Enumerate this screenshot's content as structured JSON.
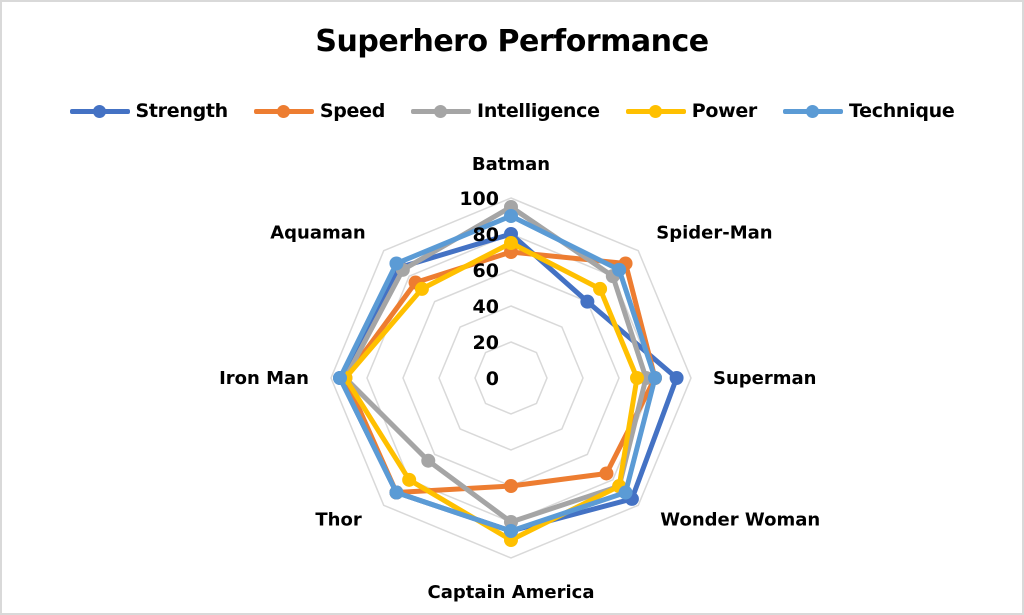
{
  "chart_data": {
    "type": "radar",
    "title": "Superhero Performance",
    "categories": [
      "Batman",
      "Spider-Man",
      "Superman",
      "Wonder Woman",
      "Captain America",
      "Thor",
      "Iron Man",
      "Aquaman"
    ],
    "series": [
      {
        "name": "Strength",
        "color": "#4472c4",
        "values": [
          80,
          60,
          92,
          95,
          85,
          90,
          95,
          87
        ]
      },
      {
        "name": "Speed",
        "color": "#ed7d31",
        "values": [
          70,
          90,
          80,
          75,
          60,
          90,
          92,
          75
        ]
      },
      {
        "name": "Intelligence",
        "color": "#a5a5a5",
        "values": [
          95,
          80,
          75,
          85,
          80,
          65,
          92,
          85
        ]
      },
      {
        "name": "Power",
        "color": "#ffc000",
        "values": [
          75,
          70,
          70,
          85,
          90,
          80,
          92,
          70
        ]
      },
      {
        "name": "Technique",
        "color": "#5b9bd5",
        "values": [
          90,
          85,
          80,
          90,
          85,
          90,
          95,
          90
        ]
      }
    ],
    "radial_ticks": [
      0,
      20,
      40,
      60,
      80,
      100
    ],
    "rlim": [
      0,
      100
    ],
    "grid": true,
    "legend_position": "top"
  },
  "title": "Superhero Performance",
  "legend": [
    {
      "label": "Strength",
      "color": "#4472c4"
    },
    {
      "label": "Speed",
      "color": "#ed7d31"
    },
    {
      "label": "Intelligence",
      "color": "#a5a5a5"
    },
    {
      "label": "Power",
      "color": "#ffc000"
    },
    {
      "label": "Technique",
      "color": "#5b9bd5"
    }
  ]
}
